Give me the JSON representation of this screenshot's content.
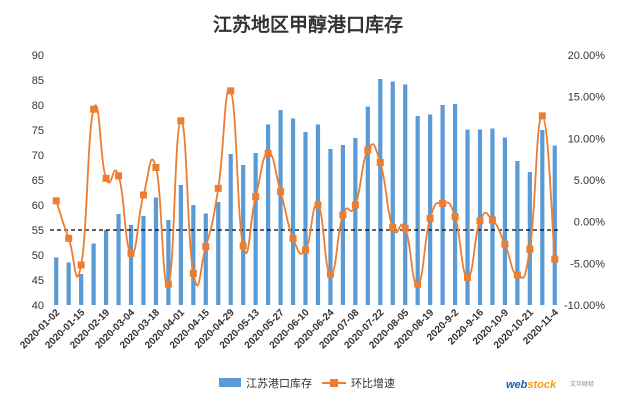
{
  "chart_data": {
    "type": "bar+line",
    "title": "江苏地区甲醇港口库存",
    "x_tick_labels": [
      "2020-01-02",
      "2020-01-15",
      "2020-02-19",
      "2020-03-04",
      "2020-03-18",
      "2020-04-01",
      "2020-04-15",
      "2020-04-29",
      "2020-05-13",
      "2020-05-27",
      "2020-06-10",
      "2020-06-24",
      "2020-07-08",
      "2020-07-22",
      "2020-08-05",
      "2020-08-19",
      "2020-9-2",
      "2020-9-16",
      "2020-10-9",
      "2020-10-21",
      "2020-11-4"
    ],
    "left_axis": {
      "min": 40,
      "max": 90,
      "step": 5,
      "tick_labels": [
        "40",
        "45",
        "50",
        "55",
        "60",
        "65",
        "70",
        "75",
        "80",
        "85",
        "90"
      ]
    },
    "right_axis": {
      "min": -0.1,
      "max": 0.2,
      "step": 0.05,
      "tick_labels": [
        "-10.00%",
        "-5.00%",
        "0.00%",
        "5.00%",
        "10.00%",
        "15.00%",
        "20.00%"
      ]
    },
    "reference_line": {
      "axis": "left",
      "value": 55,
      "style": "dashed"
    },
    "series": [
      {
        "name": "江苏港口库存",
        "type": "bar",
        "axis": "left",
        "color": "#5b9bd5",
        "values": [
          49.5,
          48.5,
          46.2,
          52.3,
          55.0,
          58.2,
          56.0,
          57.8,
          61.5,
          57.0,
          64.0,
          60.0,
          58.3,
          60.6,
          70.2,
          68.0,
          70.4,
          76.1,
          79.0,
          77.3,
          74.6,
          76.1,
          71.2,
          72.0,
          73.4,
          79.7,
          85.2,
          84.7,
          84.1,
          77.8,
          78.1,
          80.0,
          80.2,
          75.1,
          75.1,
          75.3,
          73.5,
          68.8,
          66.6,
          75.0,
          71.9
        ]
      },
      {
        "name": "环比增速",
        "type": "line",
        "axis": "right",
        "color": "#ed7d31",
        "values": [
          0.025,
          -0.02,
          -0.052,
          0.135,
          0.052,
          0.055,
          -0.038,
          0.032,
          0.065,
          -0.075,
          0.121,
          -0.062,
          -0.03,
          0.04,
          0.157,
          -0.029,
          0.03,
          0.082,
          0.036,
          -0.02,
          -0.034,
          0.02,
          -0.063,
          0.008,
          0.02,
          0.086,
          0.071,
          -0.007,
          -0.008,
          -0.075,
          0.004,
          0.022,
          0.006,
          -0.067,
          0.001,
          0.002,
          -0.027,
          -0.064,
          -0.033,
          0.127,
          -0.045
        ]
      }
    ]
  },
  "legend": {
    "items": [
      "江苏港口库存",
      "环比增速"
    ]
  },
  "watermark": {
    "brand_a": "web",
    "brand_b": "stock",
    "cn": "文华财经"
  }
}
